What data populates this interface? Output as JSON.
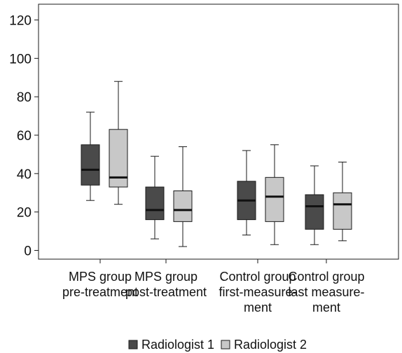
{
  "chart_data": {
    "type": "box",
    "ylim": [
      -5,
      125
    ],
    "yticks": [
      0,
      20,
      40,
      60,
      80,
      100,
      120
    ],
    "categories": [
      [
        "MPS group",
        "pre-treatment"
      ],
      [
        "MPS group",
        "post-treatment"
      ],
      [
        "Control group",
        "first-measure-",
        "ment"
      ],
      [
        "Control group",
        "last measure-",
        "ment"
      ]
    ],
    "series": [
      {
        "name": "Radiologist 1",
        "color": "#4a4a4a",
        "boxes": [
          {
            "min": 26,
            "q1": 34,
            "median": 42,
            "q3": 55,
            "max": 72
          },
          {
            "min": 6,
            "q1": 16,
            "median": 21,
            "q3": 33,
            "max": 49
          },
          {
            "min": 8,
            "q1": 16,
            "median": 26,
            "q3": 36,
            "max": 52
          },
          {
            "min": 3,
            "q1": 11,
            "median": 23,
            "q3": 29,
            "max": 44
          }
        ]
      },
      {
        "name": "Radiologist 2",
        "color": "#c8c8c8",
        "boxes": [
          {
            "min": 24,
            "q1": 33,
            "median": 38,
            "q3": 63,
            "max": 88
          },
          {
            "min": 2,
            "q1": 15,
            "median": 21,
            "q3": 31,
            "max": 54
          },
          {
            "min": 3,
            "q1": 15,
            "median": 28,
            "q3": 38,
            "max": 55
          },
          {
            "min": 5,
            "q1": 11,
            "median": 24,
            "q3": 30,
            "max": 46
          }
        ]
      }
    ]
  }
}
